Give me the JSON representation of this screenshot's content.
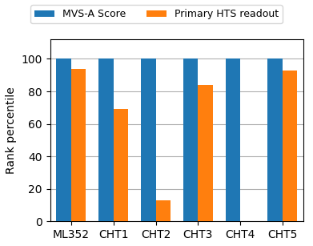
{
  "chart_data": {
    "type": "bar",
    "categories": [
      "ML352",
      "CHT1",
      "CHT2",
      "CHT3",
      "CHT4",
      "CHT5"
    ],
    "series": [
      {
        "name": "MVS-A Score",
        "values": [
          100,
          100,
          100,
          100,
          100,
          100
        ]
      },
      {
        "name": "Primary HTS readout",
        "values": [
          94,
          69,
          13,
          84,
          0,
          93
        ]
      }
    ],
    "y_label": "Rank percentile",
    "ylim": [
      0,
      112
    ],
    "yticks": [
      0,
      20,
      40,
      60,
      80,
      100
    ],
    "grid": true,
    "legend": "upper center"
  }
}
